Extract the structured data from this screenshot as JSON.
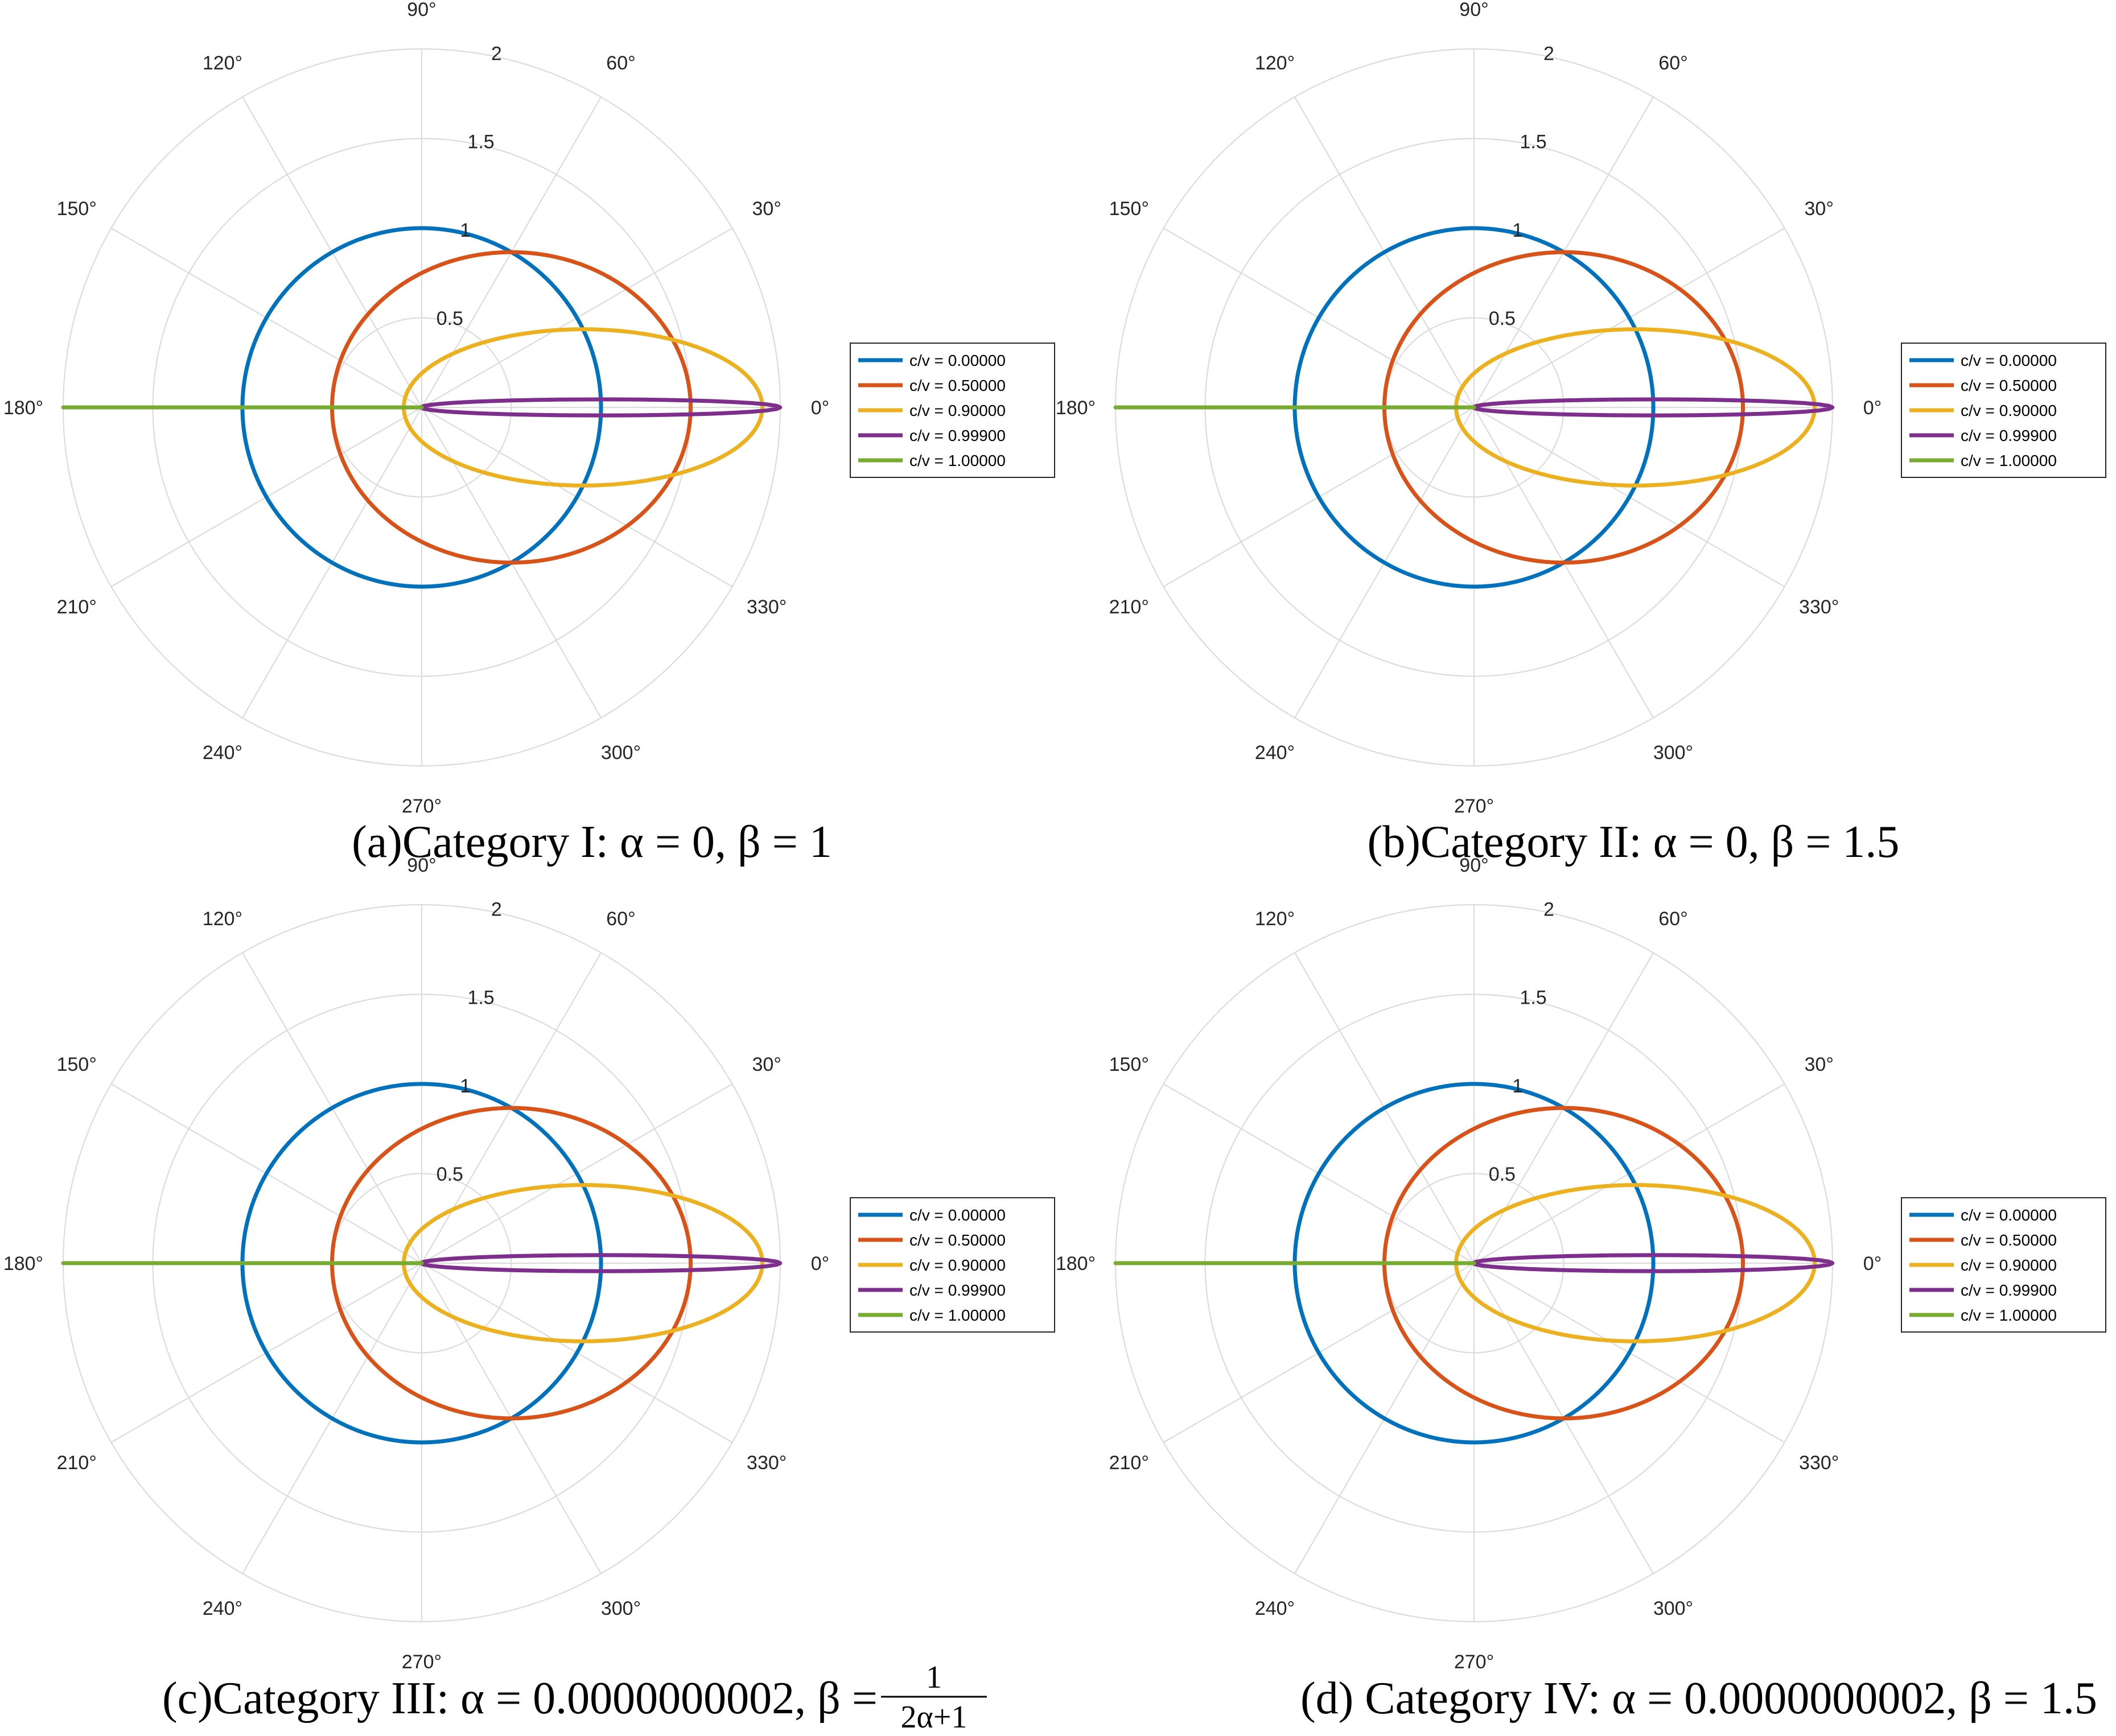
{
  "chart_data": [
    {
      "type": "polar-line",
      "caption": "(a)Category I: α = 0,  β = 1",
      "alpha": 0,
      "beta": 1,
      "rlim": [
        0,
        2
      ],
      "r_ticks": [
        "0.5",
        "1",
        "1.5",
        "2"
      ],
      "theta_ticks": [
        "0°",
        "30°",
        "60°",
        "90°",
        "120°",
        "150°",
        "180°",
        "210°",
        "240°",
        "270°",
        "300°",
        "330°"
      ],
      "grid": true,
      "legend_position": "right",
      "series": [
        {
          "name": "c/v = 0.00000",
          "cv": 0.0,
          "color": "#0072BD"
        },
        {
          "name": "c/v = 0.50000",
          "cv": 0.5,
          "color": "#D95319"
        },
        {
          "name": "c/v = 0.90000",
          "cv": 0.9,
          "color": "#EDB120"
        },
        {
          "name": "c/v = 0.99900",
          "cv": 0.999,
          "color": "#7E2F8E"
        },
        {
          "name": "c/v = 1.00000",
          "cv": 1.0,
          "color": "#77AC30"
        }
      ]
    },
    {
      "type": "polar-line",
      "caption": "(b)Category II: α = 0,  β = 1.5",
      "alpha": 0,
      "beta": 1.5,
      "rlim": [
        0,
        2
      ],
      "r_ticks": [
        "0.5",
        "1",
        "1.5",
        "2"
      ],
      "theta_ticks": [
        "0°",
        "30°",
        "60°",
        "90°",
        "120°",
        "150°",
        "180°",
        "210°",
        "240°",
        "270°",
        "300°",
        "330°"
      ],
      "grid": true,
      "legend_position": "right",
      "series": [
        {
          "name": "c/v = 0.00000",
          "cv": 0.0,
          "color": "#0072BD"
        },
        {
          "name": "c/v = 0.50000",
          "cv": 0.5,
          "color": "#D95319"
        },
        {
          "name": "c/v = 0.90000",
          "cv": 0.9,
          "color": "#EDB120"
        },
        {
          "name": "c/v = 0.99900",
          "cv": 0.999,
          "color": "#7E2F8E"
        },
        {
          "name": "c/v = 1.00000",
          "cv": 1.0,
          "color": "#77AC30"
        }
      ]
    },
    {
      "type": "polar-line",
      "caption": "(c)Category III: α = 0.0000000002,  β = 1/(2α+1)",
      "caption_lead": "(c)Category III: α = 0.0000000002,  β = ",
      "caption_frac_num": "1",
      "caption_frac_den": "2α+1",
      "alpha": 2e-10,
      "beta": 0.9999999996,
      "rlim": [
        0,
        2
      ],
      "r_ticks": [
        "0.5",
        "1",
        "1.5",
        "2"
      ],
      "theta_ticks": [
        "0°",
        "30°",
        "60°",
        "90°",
        "120°",
        "150°",
        "180°",
        "210°",
        "240°",
        "270°",
        "300°",
        "330°"
      ],
      "grid": true,
      "legend_position": "right",
      "series": [
        {
          "name": "c/v = 0.00000",
          "cv": 0.0,
          "color": "#0072BD"
        },
        {
          "name": "c/v = 0.50000",
          "cv": 0.5,
          "color": "#D95319"
        },
        {
          "name": "c/v = 0.90000",
          "cv": 0.9,
          "color": "#EDB120"
        },
        {
          "name": "c/v = 0.99900",
          "cv": 0.999,
          "color": "#7E2F8E"
        },
        {
          "name": "c/v = 1.00000",
          "cv": 1.0,
          "color": "#77AC30"
        }
      ]
    },
    {
      "type": "polar-line",
      "caption": "(d) Category IV: α = 0.0000000002,  β = 1.5",
      "alpha": 2e-10,
      "beta": 1.5,
      "rlim": [
        0,
        2
      ],
      "r_ticks": [
        "0.5",
        "1",
        "1.5",
        "2"
      ],
      "theta_ticks": [
        "0°",
        "30°",
        "60°",
        "90°",
        "120°",
        "150°",
        "180°",
        "210°",
        "240°",
        "270°",
        "300°",
        "330°"
      ],
      "grid": true,
      "legend_position": "right",
      "series": [
        {
          "name": "c/v = 0.00000",
          "cv": 0.0,
          "color": "#0072BD"
        },
        {
          "name": "c/v = 0.50000",
          "cv": 0.5,
          "color": "#D95319"
        },
        {
          "name": "c/v = 0.90000",
          "cv": 0.9,
          "color": "#EDB120"
        },
        {
          "name": "c/v = 0.99900",
          "cv": 0.999,
          "color": "#7E2F8E"
        },
        {
          "name": "c/v = 1.00000",
          "cv": 1.0,
          "color": "#77AC30"
        }
      ]
    }
  ]
}
